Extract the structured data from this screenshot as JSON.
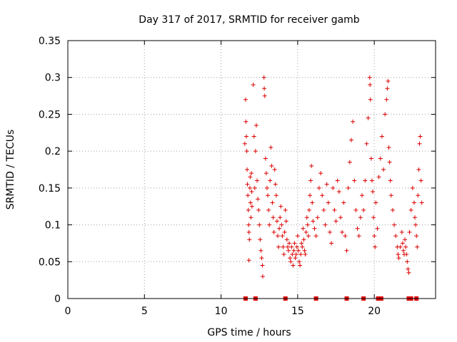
{
  "chart_data": {
    "type": "scatter",
    "title": "Day 317 of 2017, SRMTID for receiver gamb",
    "xlabel": "GPS time / hours",
    "ylabel": "SRMTID / TECUs",
    "xlim": [
      0,
      24
    ],
    "ylim": [
      0,
      0.35
    ],
    "xticks": [
      0,
      5,
      10,
      15,
      20
    ],
    "yticks": [
      0,
      0.05,
      0.1,
      0.15,
      0.2,
      0.25,
      0.3,
      0.35
    ],
    "ytick_labels": [
      "0",
      "0.05",
      "0.1",
      "0.15",
      "0.2",
      "0.25",
      "0.3",
      "0.35"
    ],
    "grid": true,
    "marker": "plus",
    "color": "#dd0000",
    "zero_value_times": [
      11.6,
      12.25,
      14.2,
      16.2,
      18.2,
      19.3,
      20.25,
      20.45,
      22.25,
      22.4,
      22.75
    ],
    "series": [
      {
        "name": "SRMTID",
        "points": [
          [
            11.55,
            0.21
          ],
          [
            11.6,
            0.27
          ],
          [
            11.62,
            0.24
          ],
          [
            11.65,
            0.22
          ],
          [
            11.68,
            0.2
          ],
          [
            11.7,
            0.175
          ],
          [
            11.72,
            0.155
          ],
          [
            11.75,
            0.14
          ],
          [
            11.78,
            0.12
          ],
          [
            11.8,
            0.1
          ],
          [
            11.82,
            0.09
          ],
          [
            11.85,
            0.08
          ],
          [
            11.88,
            0.15
          ],
          [
            11.9,
            0.165
          ],
          [
            11.92,
            0.13
          ],
          [
            11.95,
            0.11
          ],
          [
            11.98,
            0.17
          ],
          [
            12.0,
            0.145
          ],
          [
            12.02,
            0.125
          ],
          [
            11.82,
            0.052
          ],
          [
            12.1,
            0.29
          ],
          [
            12.15,
            0.22
          ],
          [
            12.2,
            0.15
          ],
          [
            12.25,
            0.2
          ],
          [
            12.3,
            0.235
          ],
          [
            12.35,
            0.16
          ],
          [
            12.4,
            0.135
          ],
          [
            12.45,
            0.12
          ],
          [
            12.5,
            0.1
          ],
          [
            12.55,
            0.08
          ],
          [
            12.6,
            0.065
          ],
          [
            12.65,
            0.055
          ],
          [
            12.7,
            0.045
          ],
          [
            12.72,
            0.03
          ],
          [
            12.8,
            0.3
          ],
          [
            12.82,
            0.285
          ],
          [
            12.85,
            0.275
          ],
          [
            12.9,
            0.19
          ],
          [
            12.95,
            0.17
          ],
          [
            13.0,
            0.15
          ],
          [
            13.05,
            0.14
          ],
          [
            13.1,
            0.12
          ],
          [
            13.15,
            0.1
          ],
          [
            13.2,
            0.16
          ],
          [
            13.25,
            0.205
          ],
          [
            13.3,
            0.18
          ],
          [
            13.35,
            0.13
          ],
          [
            13.4,
            0.11
          ],
          [
            13.45,
            0.09
          ],
          [
            13.5,
            0.175
          ],
          [
            13.55,
            0.155
          ],
          [
            13.6,
            0.14
          ],
          [
            13.65,
            0.105
          ],
          [
            13.7,
            0.085
          ],
          [
            13.75,
            0.07
          ],
          [
            13.8,
            0.095
          ],
          [
            13.85,
            0.11
          ],
          [
            13.9,
            0.125
          ],
          [
            13.95,
            0.1
          ],
          [
            14.0,
            0.085
          ],
          [
            14.05,
            0.07
          ],
          [
            14.1,
            0.06
          ],
          [
            14.15,
            0.09
          ],
          [
            14.2,
            0.12
          ],
          [
            14.25,
            0.105
          ],
          [
            14.3,
            0.08
          ],
          [
            14.35,
            0.07
          ],
          [
            14.4,
            0.065
          ],
          [
            14.45,
            0.075
          ],
          [
            14.5,
            0.055
          ],
          [
            14.55,
            0.05
          ],
          [
            14.6,
            0.07
          ],
          [
            14.65,
            0.06
          ],
          [
            14.7,
            0.045
          ],
          [
            14.75,
            0.065
          ],
          [
            14.8,
            0.075
          ],
          [
            14.85,
            0.055
          ],
          [
            14.9,
            0.06
          ],
          [
            14.95,
            0.07
          ],
          [
            15.0,
            0.085
          ],
          [
            15.05,
            0.065
          ],
          [
            15.1,
            0.05
          ],
          [
            15.15,
            0.045
          ],
          [
            15.2,
            0.06
          ],
          [
            15.25,
            0.075
          ],
          [
            15.3,
            0.07
          ],
          [
            15.35,
            0.095
          ],
          [
            15.4,
            0.08
          ],
          [
            15.45,
            0.065
          ],
          [
            15.5,
            0.06
          ],
          [
            15.55,
            0.09
          ],
          [
            15.6,
            0.11
          ],
          [
            15.65,
            0.1
          ],
          [
            15.7,
            0.085
          ],
          [
            15.75,
            0.12
          ],
          [
            15.8,
            0.14
          ],
          [
            15.85,
            0.16
          ],
          [
            15.9,
            0.18
          ],
          [
            15.95,
            0.13
          ],
          [
            16.0,
            0.105
          ],
          [
            16.1,
            0.095
          ],
          [
            16.2,
            0.085
          ],
          [
            16.3,
            0.11
          ],
          [
            16.4,
            0.15
          ],
          [
            16.5,
            0.17
          ],
          [
            16.6,
            0.14
          ],
          [
            16.7,
            0.12
          ],
          [
            16.8,
            0.1
          ],
          [
            16.9,
            0.155
          ],
          [
            17.0,
            0.13
          ],
          [
            17.1,
            0.09
          ],
          [
            17.2,
            0.075
          ],
          [
            17.3,
            0.15
          ],
          [
            17.4,
            0.12
          ],
          [
            17.5,
            0.105
          ],
          [
            17.6,
            0.16
          ],
          [
            17.7,
            0.145
          ],
          [
            17.8,
            0.11
          ],
          [
            17.9,
            0.09
          ],
          [
            18.0,
            0.13
          ],
          [
            18.1,
            0.085
          ],
          [
            18.2,
            0.065
          ],
          [
            18.3,
            0.15
          ],
          [
            18.4,
            0.185
          ],
          [
            18.5,
            0.215
          ],
          [
            18.6,
            0.24
          ],
          [
            18.7,
            0.16
          ],
          [
            18.8,
            0.12
          ],
          [
            18.9,
            0.095
          ],
          [
            19.0,
            0.085
          ],
          [
            19.1,
            0.11
          ],
          [
            19.2,
            0.14
          ],
          [
            19.3,
            0.12
          ],
          [
            19.4,
            0.16
          ],
          [
            19.5,
            0.21
          ],
          [
            19.6,
            0.245
          ],
          [
            19.7,
            0.3
          ],
          [
            19.72,
            0.29
          ],
          [
            19.75,
            0.27
          ],
          [
            19.8,
            0.19
          ],
          [
            19.85,
            0.16
          ],
          [
            19.9,
            0.145
          ],
          [
            19.95,
            0.11
          ],
          [
            20.0,
            0.085
          ],
          [
            20.05,
            0.07
          ],
          [
            20.1,
            0.13
          ],
          [
            20.2,
            0.095
          ],
          [
            20.3,
            0.165
          ],
          [
            20.4,
            0.19
          ],
          [
            20.5,
            0.22
          ],
          [
            20.6,
            0.175
          ],
          [
            20.7,
            0.25
          ],
          [
            20.8,
            0.27
          ],
          [
            20.85,
            0.285
          ],
          [
            20.9,
            0.295
          ],
          [
            20.95,
            0.205
          ],
          [
            21.0,
            0.185
          ],
          [
            21.05,
            0.16
          ],
          [
            21.1,
            0.14
          ],
          [
            21.2,
            0.12
          ],
          [
            21.3,
            0.1
          ],
          [
            21.4,
            0.085
          ],
          [
            21.5,
            0.07
          ],
          [
            21.55,
            0.06
          ],
          [
            21.6,
            0.055
          ],
          [
            21.7,
            0.07
          ],
          [
            21.8,
            0.09
          ],
          [
            21.85,
            0.075
          ],
          [
            21.9,
            0.065
          ],
          [
            21.95,
            0.06
          ],
          [
            22.0,
            0.08
          ],
          [
            22.05,
            0.07
          ],
          [
            22.1,
            0.06
          ],
          [
            22.15,
            0.05
          ],
          [
            22.2,
            0.04
          ],
          [
            22.25,
            0.035
          ],
          [
            22.3,
            0.09
          ],
          [
            22.4,
            0.12
          ],
          [
            22.5,
            0.15
          ],
          [
            22.6,
            0.13
          ],
          [
            22.65,
            0.11
          ],
          [
            22.7,
            0.1
          ],
          [
            22.75,
            0.085
          ],
          [
            22.8,
            0.07
          ],
          [
            22.85,
            0.14
          ],
          [
            22.9,
            0.175
          ],
          [
            22.95,
            0.21
          ],
          [
            23.0,
            0.22
          ],
          [
            23.05,
            0.16
          ],
          [
            23.1,
            0.13
          ]
        ]
      }
    ]
  }
}
